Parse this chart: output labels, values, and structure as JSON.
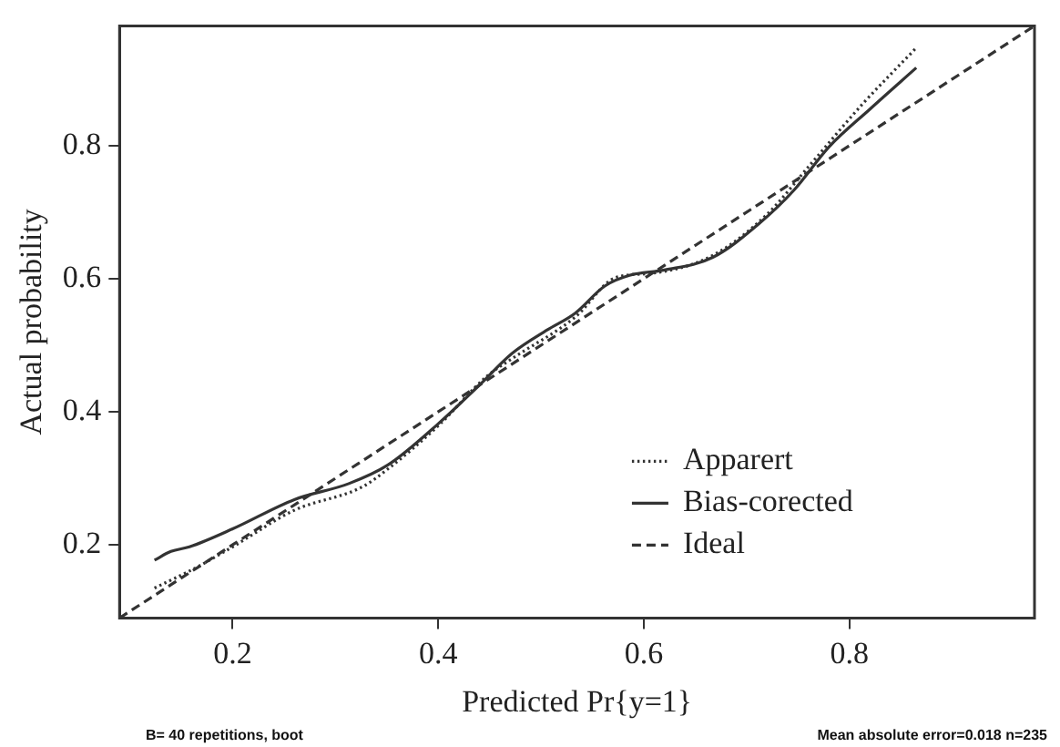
{
  "chart_data": {
    "type": "line",
    "xlabel": "Predicted Pr{y=1}",
    "ylabel": "Actual probability",
    "xlim": [
      0.09,
      0.98
    ],
    "ylim": [
      0.09,
      0.98
    ],
    "xticks": [
      0.2,
      0.4,
      0.6,
      0.8
    ],
    "yticks": [
      0.2,
      0.4,
      0.6,
      0.8
    ],
    "grid": false,
    "legend": "bottom right",
    "marker": "none",
    "annotations": [
      "B= 40 repetitions, boot",
      "Mean absolute error=0.018 n=235"
    ],
    "series": [
      {
        "name": "Apparert",
        "color": "#333333",
        "line_style": "dotted",
        "x": [
          0.124,
          0.166,
          0.2,
          0.26,
          0.326,
          0.351,
          0.4,
          0.447,
          0.472,
          0.533,
          0.573,
          0.607,
          0.667,
          0.72,
          0.76,
          0.813,
          0.865
        ],
        "values": [
          0.135,
          0.167,
          0.197,
          0.252,
          0.287,
          0.314,
          0.379,
          0.453,
          0.48,
          0.542,
          0.602,
          0.608,
          0.635,
          0.697,
          0.768,
          0.863,
          0.947
        ]
      },
      {
        "name": "Bias-corected",
        "color": "#333333",
        "line_style": "solid",
        "x": [
          0.124,
          0.14,
          0.158,
          0.2,
          0.26,
          0.313,
          0.351,
          0.4,
          0.44,
          0.472,
          0.506,
          0.533,
          0.562,
          0.586,
          0.62,
          0.667,
          0.713,
          0.746,
          0.78,
          0.82,
          0.865
        ],
        "values": [
          0.177,
          0.19,
          0.197,
          0.224,
          0.268,
          0.292,
          0.32,
          0.382,
          0.44,
          0.488,
          0.523,
          0.548,
          0.589,
          0.605,
          0.613,
          0.632,
          0.684,
          0.733,
          0.798,
          0.855,
          0.917
        ]
      },
      {
        "name": "Ideal",
        "color": "#333333",
        "line_style": "dashed",
        "x": [
          0.09,
          0.98
        ],
        "values": [
          0.09,
          0.98
        ]
      }
    ]
  }
}
